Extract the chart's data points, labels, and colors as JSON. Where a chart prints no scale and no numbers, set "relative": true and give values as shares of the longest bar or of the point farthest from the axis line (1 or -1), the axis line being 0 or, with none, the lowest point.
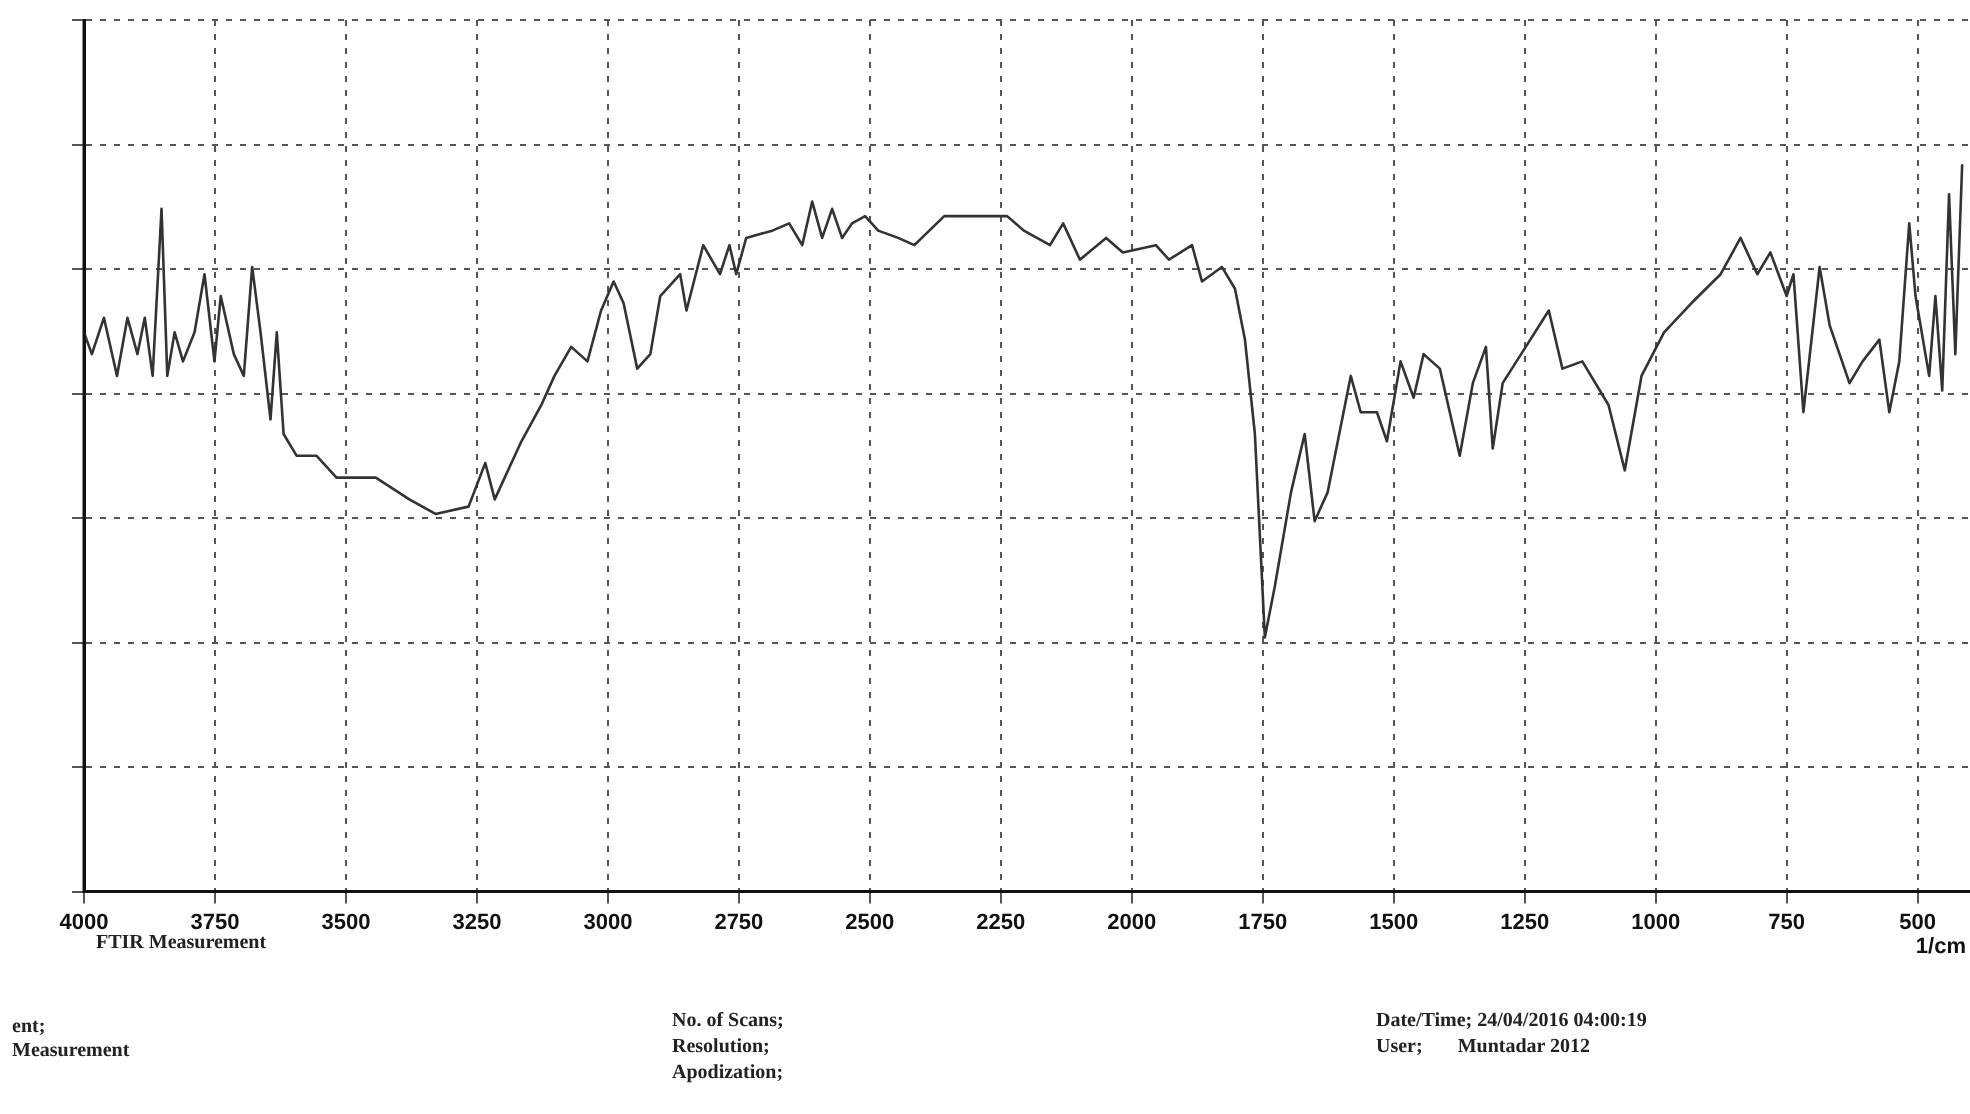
{
  "chart_data": {
    "type": "line",
    "relative": true,
    "xlabel": "1/cm",
    "xlim": [
      4000,
      400
    ],
    "xticks": [
      4000,
      3750,
      3500,
      3250,
      3000,
      2750,
      2500,
      2250,
      2000,
      1750,
      1500,
      1250,
      1000,
      750,
      500
    ],
    "grid": true,
    "legend": false,
    "marker": "none",
    "line_style": "solid",
    "annotations": [
      "FTIR Measurement",
      "ent;",
      "Measurement",
      "No. of Scans;",
      "Resolution;",
      "Apodization;",
      "Date/Time; 24/04/2016 04:00:19",
      "User;       Muntadar 2012"
    ],
    "series": [
      {
        "color": "#333333",
        "x": [
          4000,
          3985,
          3962,
          3937,
          3917,
          3898,
          3884,
          3869,
          3852,
          3841,
          3827,
          3811,
          3789,
          3770,
          3751,
          3739,
          3714,
          3695,
          3679,
          3663,
          3644,
          3632,
          3619,
          3594,
          3556,
          3518,
          3443,
          3379,
          3329,
          3266,
          3234,
          3216,
          3197,
          3165,
          3127,
          3102,
          3070,
          3039,
          3013,
          2989,
          2970,
          2944,
          2919,
          2900,
          2862,
          2850,
          2818,
          2786,
          2768,
          2755,
          2736,
          2686,
          2654,
          2629,
          2610,
          2591,
          2572,
          2553,
          2534,
          2509,
          2484,
          2446,
          2415,
          2358,
          2320,
          2238,
          2206,
          2156,
          2131,
          2099,
          2049,
          2017,
          1954,
          1929,
          1885,
          1866,
          1828,
          1803,
          1784,
          1765,
          1746,
          1727,
          1696,
          1670,
          1651,
          1626,
          1582,
          1563,
          1532,
          1513,
          1487,
          1462,
          1443,
          1412,
          1374,
          1349,
          1324,
          1311,
          1292,
          1248,
          1204,
          1178,
          1140,
          1090,
          1059,
          1027,
          984,
          932,
          876,
          838,
          806,
          781,
          750,
          737,
          718,
          687,
          668,
          630,
          605,
          573,
          554,
          535,
          516,
          504,
          478,
          466,
          453,
          440,
          428,
          415
        ],
        "values": [
          0.77,
          0.74,
          0.79,
          0.71,
          0.79,
          0.74,
          0.79,
          0.71,
          0.94,
          0.71,
          0.77,
          0.73,
          0.77,
          0.85,
          0.73,
          0.82,
          0.74,
          0.71,
          0.86,
          0.77,
          0.65,
          0.77,
          0.63,
          0.6,
          0.6,
          0.57,
          0.57,
          0.54,
          0.52,
          0.53,
          0.59,
          0.54,
          0.57,
          0.62,
          0.67,
          0.71,
          0.75,
          0.73,
          0.8,
          0.84,
          0.81,
          0.72,
          0.74,
          0.82,
          0.85,
          0.8,
          0.89,
          0.85,
          0.89,
          0.85,
          0.9,
          0.91,
          0.92,
          0.89,
          0.95,
          0.9,
          0.94,
          0.9,
          0.92,
          0.93,
          0.91,
          0.9,
          0.89,
          0.93,
          0.93,
          0.93,
          0.91,
          0.89,
          0.92,
          0.87,
          0.9,
          0.88,
          0.89,
          0.87,
          0.89,
          0.84,
          0.86,
          0.83,
          0.76,
          0.63,
          0.35,
          0.42,
          0.55,
          0.63,
          0.51,
          0.55,
          0.71,
          0.66,
          0.66,
          0.62,
          0.73,
          0.68,
          0.74,
          0.72,
          0.6,
          0.7,
          0.75,
          0.61,
          0.7,
          0.75,
          0.8,
          0.72,
          0.73,
          0.67,
          0.58,
          0.71,
          0.77,
          0.81,
          0.85,
          0.9,
          0.85,
          0.88,
          0.82,
          0.85,
          0.66,
          0.86,
          0.78,
          0.7,
          0.73,
          0.76,
          0.66,
          0.73,
          0.92,
          0.82,
          0.71,
          0.82,
          0.69,
          0.96,
          0.74,
          1.0
        ]
      }
    ]
  }
}
